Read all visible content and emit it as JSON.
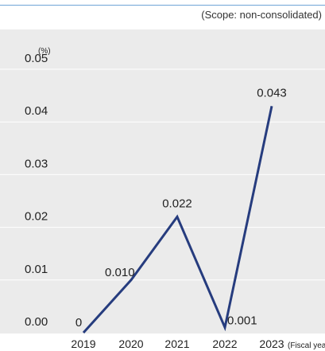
{
  "scope_note": "(Scope: non-consolidated)",
  "colors": {
    "line": "#263c7e",
    "panel_bg": "#ebebeb",
    "grid": "#ffffff",
    "top_rule": "#6fa4d6"
  },
  "chart_data": {
    "type": "line",
    "ylabel": "(%)",
    "xlabel": "(Fiscal year)",
    "ylim": [
      0,
      0.05
    ],
    "y_ticks": [
      "0.00",
      "0.01",
      "0.02",
      "0.03",
      "0.04",
      "0.05"
    ],
    "categories": [
      "2019",
      "2020",
      "2021",
      "2022",
      "2023"
    ],
    "grid": true,
    "series": [
      {
        "values": [
          0,
          0.01,
          0.022,
          0.001,
          0.043
        ],
        "labels": [
          "0",
          "0.010",
          "0.022",
          "0.001",
          "0.043"
        ]
      }
    ]
  }
}
